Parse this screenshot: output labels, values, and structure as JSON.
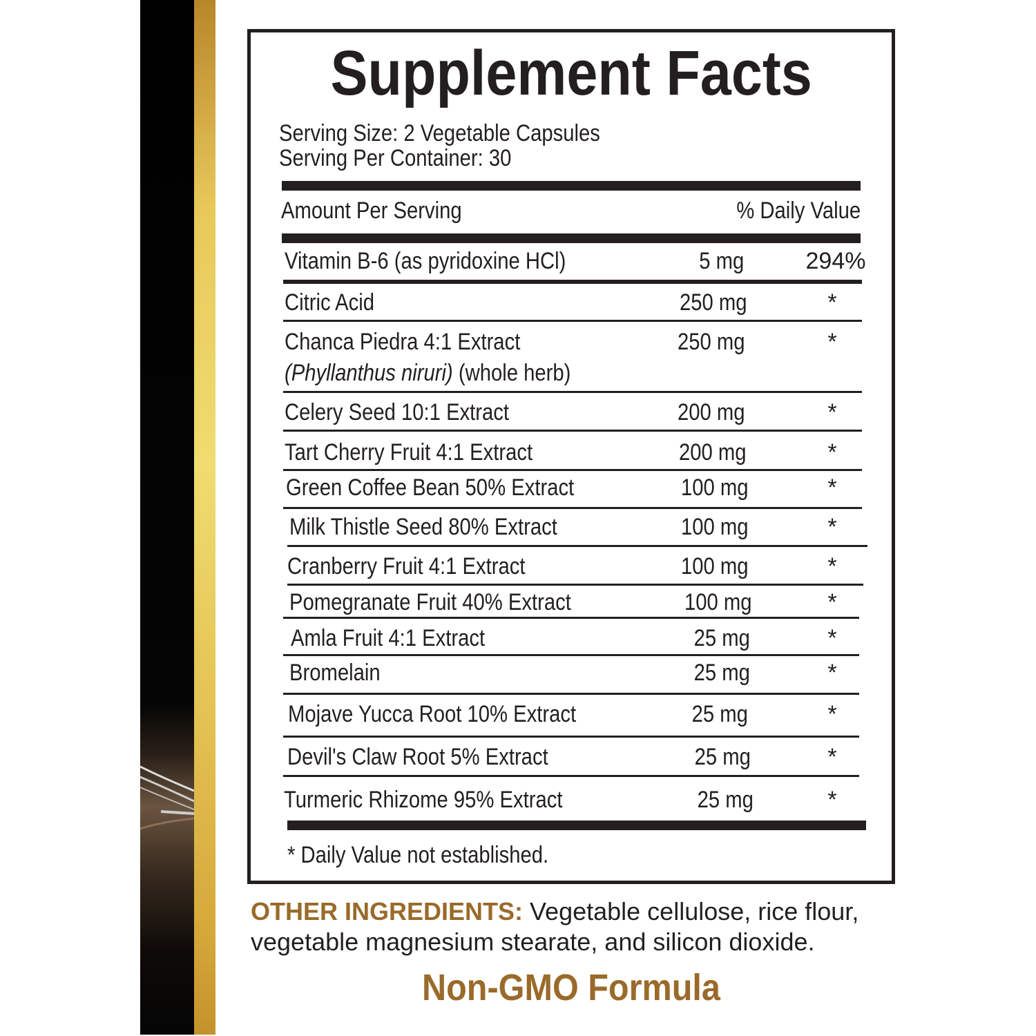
{
  "title": "Supplement Facts",
  "serving_size": "Serving Size: 2 Vegetable Capsules",
  "servings_per_container": "Serving Per Container: 30",
  "header": {
    "amount": "Amount Per Serving",
    "daily_value": "% Daily Value"
  },
  "ingredients": [
    {
      "name": "Vitamin B-6 (as pyridoxine HCl)",
      "amount": "5 mg",
      "dv": "294%"
    },
    {
      "name": "Citric Acid",
      "amount": "250 mg",
      "dv": "*"
    },
    {
      "name": "Chanca Piedra 4:1 Extract",
      "subname_italic": "(Phyllanthus niruri)",
      "subname": " (whole herb)",
      "amount": "250 mg",
      "dv": "*"
    },
    {
      "name": "Celery Seed 10:1 Extract",
      "amount": "200 mg",
      "dv": "*"
    },
    {
      "name": "Tart Cherry Fruit 4:1 Extract",
      "amount": "200 mg",
      "dv": "*"
    },
    {
      "name": "Green Coffee Bean 50% Extract",
      "amount": "100 mg",
      "dv": "*"
    },
    {
      "name": "Milk Thistle Seed 80% Extract",
      "amount": "100 mg",
      "dv": "*"
    },
    {
      "name": "Cranberry Fruit 4:1 Extract",
      "amount": "100 mg",
      "dv": "*"
    },
    {
      "name": "Pomegranate Fruit 40% Extract",
      "amount": "100 mg",
      "dv": "*"
    },
    {
      "name": "Amla Fruit 4:1 Extract",
      "amount": "25 mg",
      "dv": "*"
    },
    {
      "name": "Bromelain",
      "amount": "25 mg",
      "dv": "*"
    },
    {
      "name": "Mojave Yucca Root 10% Extract",
      "amount": "25 mg",
      "dv": "*"
    },
    {
      "name": "Devil's Claw Root 5% Extract",
      "amount": "25 mg",
      "dv": "*"
    },
    {
      "name": "Turmeric Rhizome 95% Extract",
      "amount": "25 mg",
      "dv": "*"
    }
  ],
  "footnote": "* Daily Value not established.",
  "other_ingredients": {
    "label": "OTHER INGREDIENTS:",
    "text": " Vegetable cellulose, rice flour, vegetable magnesium stearate, and silicon dioxide."
  },
  "badge": "Non-GMO Formula",
  "colors": {
    "accent_brown": "#9a6a2a",
    "gold": "#e3c152",
    "text": "#231f20"
  }
}
